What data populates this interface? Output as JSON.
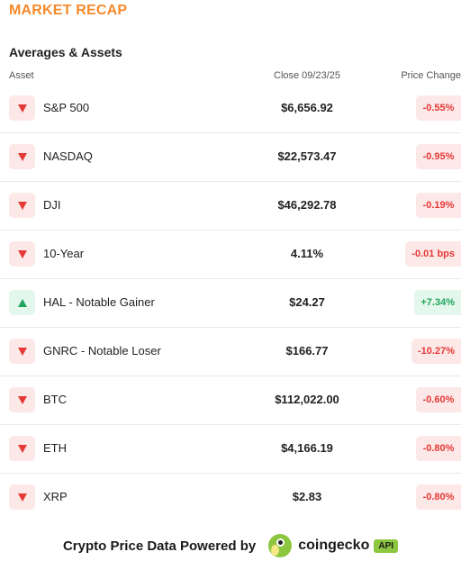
{
  "title": "MARKET RECAP",
  "section_title": "Averages & Assets",
  "columns": {
    "asset": "Asset",
    "close": "Close 09/23/25",
    "change": "Price Change"
  },
  "rows": [
    {
      "direction": "down",
      "asset": "S&P 500",
      "close": "$6,656.92",
      "change": "-0.55%"
    },
    {
      "direction": "down",
      "asset": "NASDAQ",
      "close": "$22,573.47",
      "change": "-0.95%"
    },
    {
      "direction": "down",
      "asset": "DJI",
      "close": "$46,292.78",
      "change": "-0.19%"
    },
    {
      "direction": "down",
      "asset": "10-Year",
      "close": "4.11%",
      "change": "-0.01 bps"
    },
    {
      "direction": "up",
      "asset": "HAL - Notable Gainer",
      "close": "$24.27",
      "change": "+7.34%"
    },
    {
      "direction": "down",
      "asset": "GNRC - Notable Loser",
      "close": "$166.77",
      "change": "-10.27%"
    },
    {
      "direction": "down",
      "asset": "BTC",
      "close": "$112,022.00",
      "change": "-0.60%"
    },
    {
      "direction": "down",
      "asset": "ETH",
      "close": "$4,166.19",
      "change": "-0.80%"
    },
    {
      "direction": "down",
      "asset": "XRP",
      "close": "$2.83",
      "change": "-0.80%"
    }
  ],
  "footer": {
    "powered_by": "Crypto Price Data Powered by",
    "brand": "coingecko",
    "badge": "API",
    "logo_icon": "gecko-logo-icon"
  },
  "colors": {
    "accent": "#f58a2b",
    "negative": "#e53935",
    "positive": "#1fa55b",
    "brand_green": "#8dc63f"
  }
}
